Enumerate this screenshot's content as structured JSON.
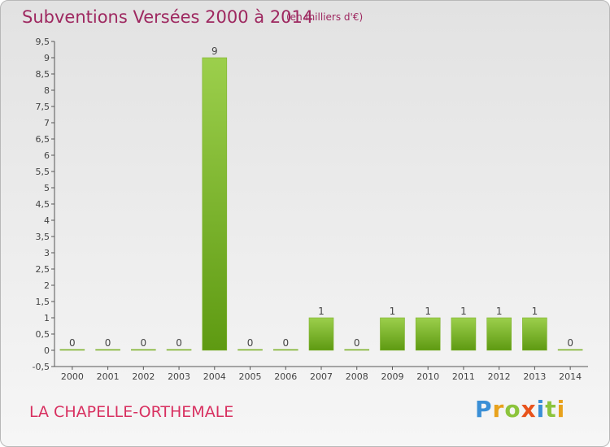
{
  "header": {
    "title": "Subventions Versées 2000 à 2014",
    "subtitle": "(en milliers d'€)"
  },
  "commune": "LA CHAPELLE-ORTHEMALE",
  "logo": {
    "letters": [
      "P",
      "r",
      "o",
      "x",
      "i",
      "t",
      "i"
    ],
    "colors": [
      "#3a8fd6",
      "#e8a21c",
      "#8cc43c",
      "#e8531c",
      "#3a8fd6",
      "#8cc43c",
      "#e8a21c"
    ]
  },
  "chart_data": {
    "type": "bar",
    "categories": [
      "2000",
      "2001",
      "2002",
      "2003",
      "2004",
      "2005",
      "2006",
      "2007",
      "2008",
      "2009",
      "2010",
      "2011",
      "2012",
      "2013",
      "2014"
    ],
    "values": [
      0,
      0,
      0,
      0,
      9,
      0,
      0,
      1,
      0,
      1,
      1,
      1,
      1,
      1,
      0
    ],
    "data_labels": [
      "0",
      "0",
      "0",
      "0",
      "9",
      "0",
      "0",
      "1",
      "0",
      "1",
      "1",
      "1",
      "1",
      "1",
      "0"
    ],
    "yticks": [
      "-0,5",
      "0",
      "0,5",
      "1",
      "1,5",
      "2",
      "2,5",
      "3",
      "3,5",
      "4",
      "4,5",
      "5",
      "5,5",
      "6",
      "6,5",
      "7",
      "7,5",
      "8",
      "8,5",
      "9",
      "9,5"
    ],
    "ylim": [
      -0.5,
      9.5
    ],
    "title": "Subventions Versées 2000 à 2014",
    "xlabel": "",
    "ylabel": "",
    "grid": false,
    "bar_color_top": "#9ccf4c",
    "bar_color_bottom": "#5e9a12"
  }
}
